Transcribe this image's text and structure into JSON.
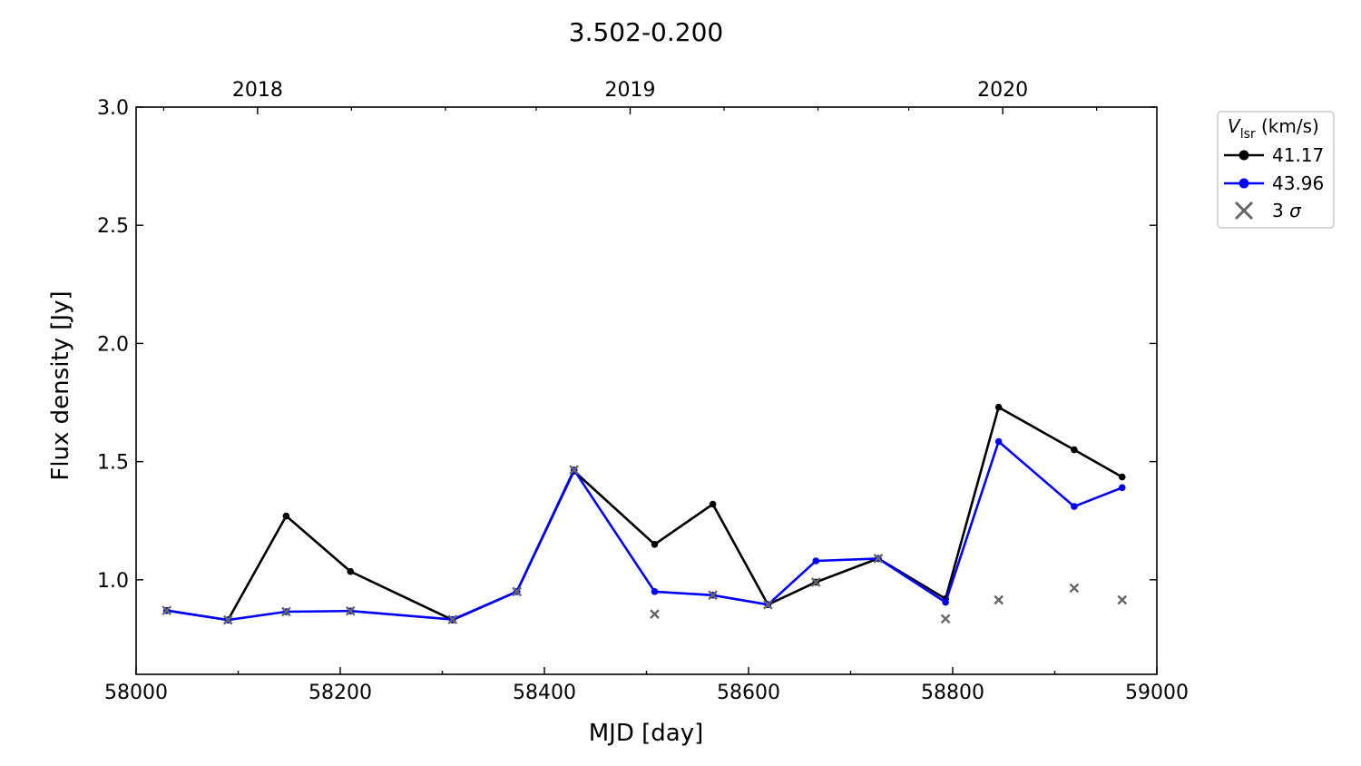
{
  "chart_data": {
    "type": "line",
    "title": "3.502-0.200",
    "xlabel": "MJD [day]",
    "ylabel": "Flux density [Jy]",
    "xlim": [
      58000,
      59000
    ],
    "ylim": [
      0.6,
      3.0
    ],
    "x_ticks": [
      58000,
      58200,
      58400,
      58600,
      58800,
      59000
    ],
    "y_ticks": [
      1.0,
      1.5,
      2.0,
      2.5,
      3.0
    ],
    "y_tick_labels": [
      "1.0",
      "1.5",
      "2.0",
      "2.5",
      "3.0"
    ],
    "top_axis": {
      "ticks": [
        58119,
        58484,
        58849
      ],
      "labels": [
        "2018",
        "2019",
        "2020"
      ]
    },
    "legend": {
      "title_symbol": "V",
      "title_subscript": "lsr",
      "title_unit": " (km/s)",
      "placement": "outside-top-right",
      "sigma_label_prefix": "3 ",
      "sigma_label_symbol": "σ"
    },
    "series": [
      {
        "name": "41.17",
        "color": "#000000",
        "x": [
          58030,
          58090,
          58147,
          58210,
          58310,
          58373,
          58429,
          58508,
          58565,
          58619,
          58666,
          58727,
          58793,
          58845,
          58919,
          58966
        ],
        "y": [
          0.87,
          0.83,
          1.27,
          1.035,
          0.83,
          0.95,
          1.46,
          1.15,
          1.32,
          0.895,
          0.99,
          1.09,
          0.92,
          1.73,
          1.55,
          1.435
        ]
      },
      {
        "name": "43.96",
        "color": "#0000ff",
        "x": [
          58030,
          58090,
          58147,
          58210,
          58310,
          58373,
          58429,
          58508,
          58565,
          58619,
          58666,
          58727,
          58793,
          58845,
          58919,
          58966
        ],
        "y": [
          0.87,
          0.83,
          0.865,
          0.868,
          0.832,
          0.95,
          1.465,
          0.95,
          0.935,
          0.895,
          1.08,
          1.09,
          0.905,
          1.585,
          1.31,
          1.39
        ]
      }
    ],
    "sigma_points": {
      "color": "#666666",
      "x": [
        58030,
        58090,
        58147,
        58210,
        58310,
        58373,
        58429,
        58508,
        58565,
        58619,
        58666,
        58727,
        58793,
        58845,
        58919,
        58966
      ],
      "y": [
        0.87,
        0.83,
        0.865,
        0.868,
        0.832,
        0.95,
        1.465,
        0.855,
        0.935,
        0.895,
        0.99,
        1.09,
        0.835,
        0.915,
        0.965,
        0.915
      ]
    }
  }
}
